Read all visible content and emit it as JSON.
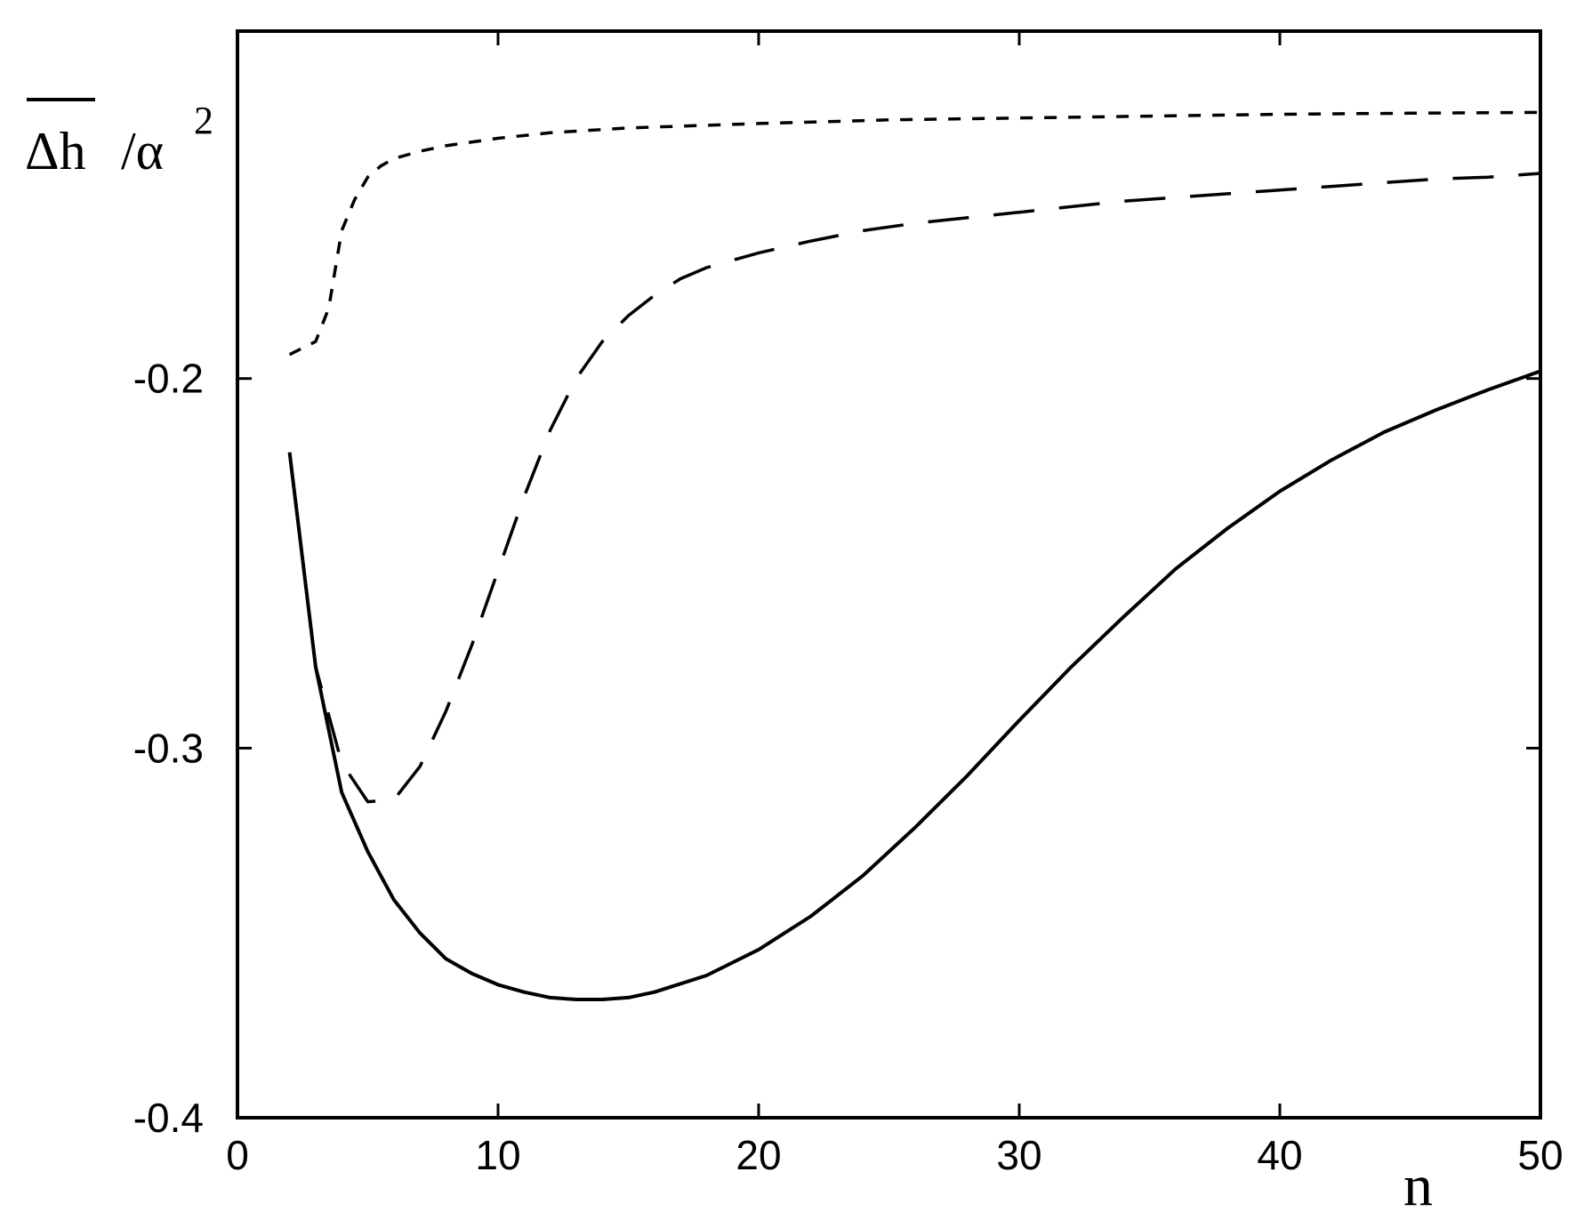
{
  "chart_data": {
    "type": "line",
    "title": "",
    "xlabel": "n",
    "ylabel": {
      "symbol": "Δh",
      "divisor": "/α",
      "exponent": "2"
    },
    "xlim": [
      0,
      50
    ],
    "ylim": [
      -0.4,
      -0.106
    ],
    "x_ticks": [
      {
        "value": 0,
        "label": "0"
      },
      {
        "value": 10,
        "label": "10"
      },
      {
        "value": 20,
        "label": "20"
      },
      {
        "value": 30,
        "label": "30"
      },
      {
        "value": 40,
        "label": "40"
      },
      {
        "value": 50,
        "label": "50"
      }
    ],
    "y_ticks": [
      {
        "value": -0.2,
        "label": "-0.2"
      },
      {
        "value": -0.3,
        "label": "-0.3"
      },
      {
        "value": -0.4,
        "label": "-0.4"
      }
    ],
    "grid": false,
    "legend": "none",
    "series": [
      {
        "style": "solid",
        "color": "#000000",
        "points": [
          [
            2,
            -0.22
          ],
          [
            3,
            -0.278
          ],
          [
            4,
            -0.312
          ],
          [
            5,
            -0.328
          ],
          [
            6,
            -0.341
          ],
          [
            7,
            -0.35
          ],
          [
            8,
            -0.357
          ],
          [
            9,
            -0.361
          ],
          [
            10,
            -0.364
          ],
          [
            11,
            -0.366
          ],
          [
            12,
            -0.3675
          ],
          [
            13,
            -0.368
          ],
          [
            14,
            -0.368
          ],
          [
            15,
            -0.3675
          ],
          [
            16,
            -0.366
          ],
          [
            18,
            -0.3615
          ],
          [
            20,
            -0.3545
          ],
          [
            22,
            -0.3455
          ],
          [
            24,
            -0.3345
          ],
          [
            26,
            -0.3215
          ],
          [
            28,
            -0.3075
          ],
          [
            30,
            -0.2925
          ],
          [
            32,
            -0.278
          ],
          [
            34,
            -0.2645
          ],
          [
            36,
            -0.2515
          ],
          [
            38,
            -0.2405
          ],
          [
            40,
            -0.2305
          ],
          [
            42,
            -0.222
          ],
          [
            44,
            -0.2145
          ],
          [
            46,
            -0.2085
          ],
          [
            48,
            -0.203
          ],
          [
            50,
            -0.198
          ]
        ]
      },
      {
        "style": "long-dash",
        "color": "#000000",
        "points": [
          [
            2,
            -0.22
          ],
          [
            3,
            -0.278
          ],
          [
            4,
            -0.304
          ],
          [
            5,
            -0.3145
          ],
          [
            6,
            -0.314
          ],
          [
            7,
            -0.305
          ],
          [
            8,
            -0.29
          ],
          [
            9,
            -0.272
          ],
          [
            10,
            -0.252
          ],
          [
            11,
            -0.232
          ],
          [
            12,
            -0.214
          ],
          [
            13,
            -0.2
          ],
          [
            14,
            -0.19
          ],
          [
            15,
            -0.183
          ],
          [
            16,
            -0.1775
          ],
          [
            17,
            -0.173
          ],
          [
            18,
            -0.17
          ],
          [
            19,
            -0.168
          ],
          [
            20,
            -0.166
          ],
          [
            22,
            -0.1628
          ],
          [
            24,
            -0.16
          ],
          [
            26,
            -0.158
          ],
          [
            28,
            -0.1565
          ],
          [
            30,
            -0.155
          ],
          [
            32,
            -0.1535
          ],
          [
            34,
            -0.152
          ],
          [
            36,
            -0.151
          ],
          [
            38,
            -0.15
          ],
          [
            40,
            -0.149
          ],
          [
            42,
            -0.148
          ],
          [
            44,
            -0.147
          ],
          [
            46,
            -0.146
          ],
          [
            48,
            -0.1455
          ],
          [
            50,
            -0.1445
          ]
        ]
      },
      {
        "style": "short-dash",
        "color": "#000000",
        "points": [
          [
            2,
            -0.1935
          ],
          [
            3,
            -0.19
          ],
          [
            3.5,
            -0.181
          ],
          [
            4,
            -0.16
          ],
          [
            4.5,
            -0.1515
          ],
          [
            5,
            -0.1455
          ],
          [
            5.5,
            -0.1425
          ],
          [
            6,
            -0.1405
          ],
          [
            7,
            -0.1385
          ],
          [
            8,
            -0.137
          ],
          [
            10,
            -0.135
          ],
          [
            12,
            -0.1335
          ],
          [
            15,
            -0.1322
          ],
          [
            20,
            -0.131
          ],
          [
            25,
            -0.13
          ],
          [
            30,
            -0.1295
          ],
          [
            35,
            -0.129
          ],
          [
            40,
            -0.1285
          ],
          [
            45,
            -0.1282
          ],
          [
            50,
            -0.128
          ]
        ]
      }
    ]
  }
}
